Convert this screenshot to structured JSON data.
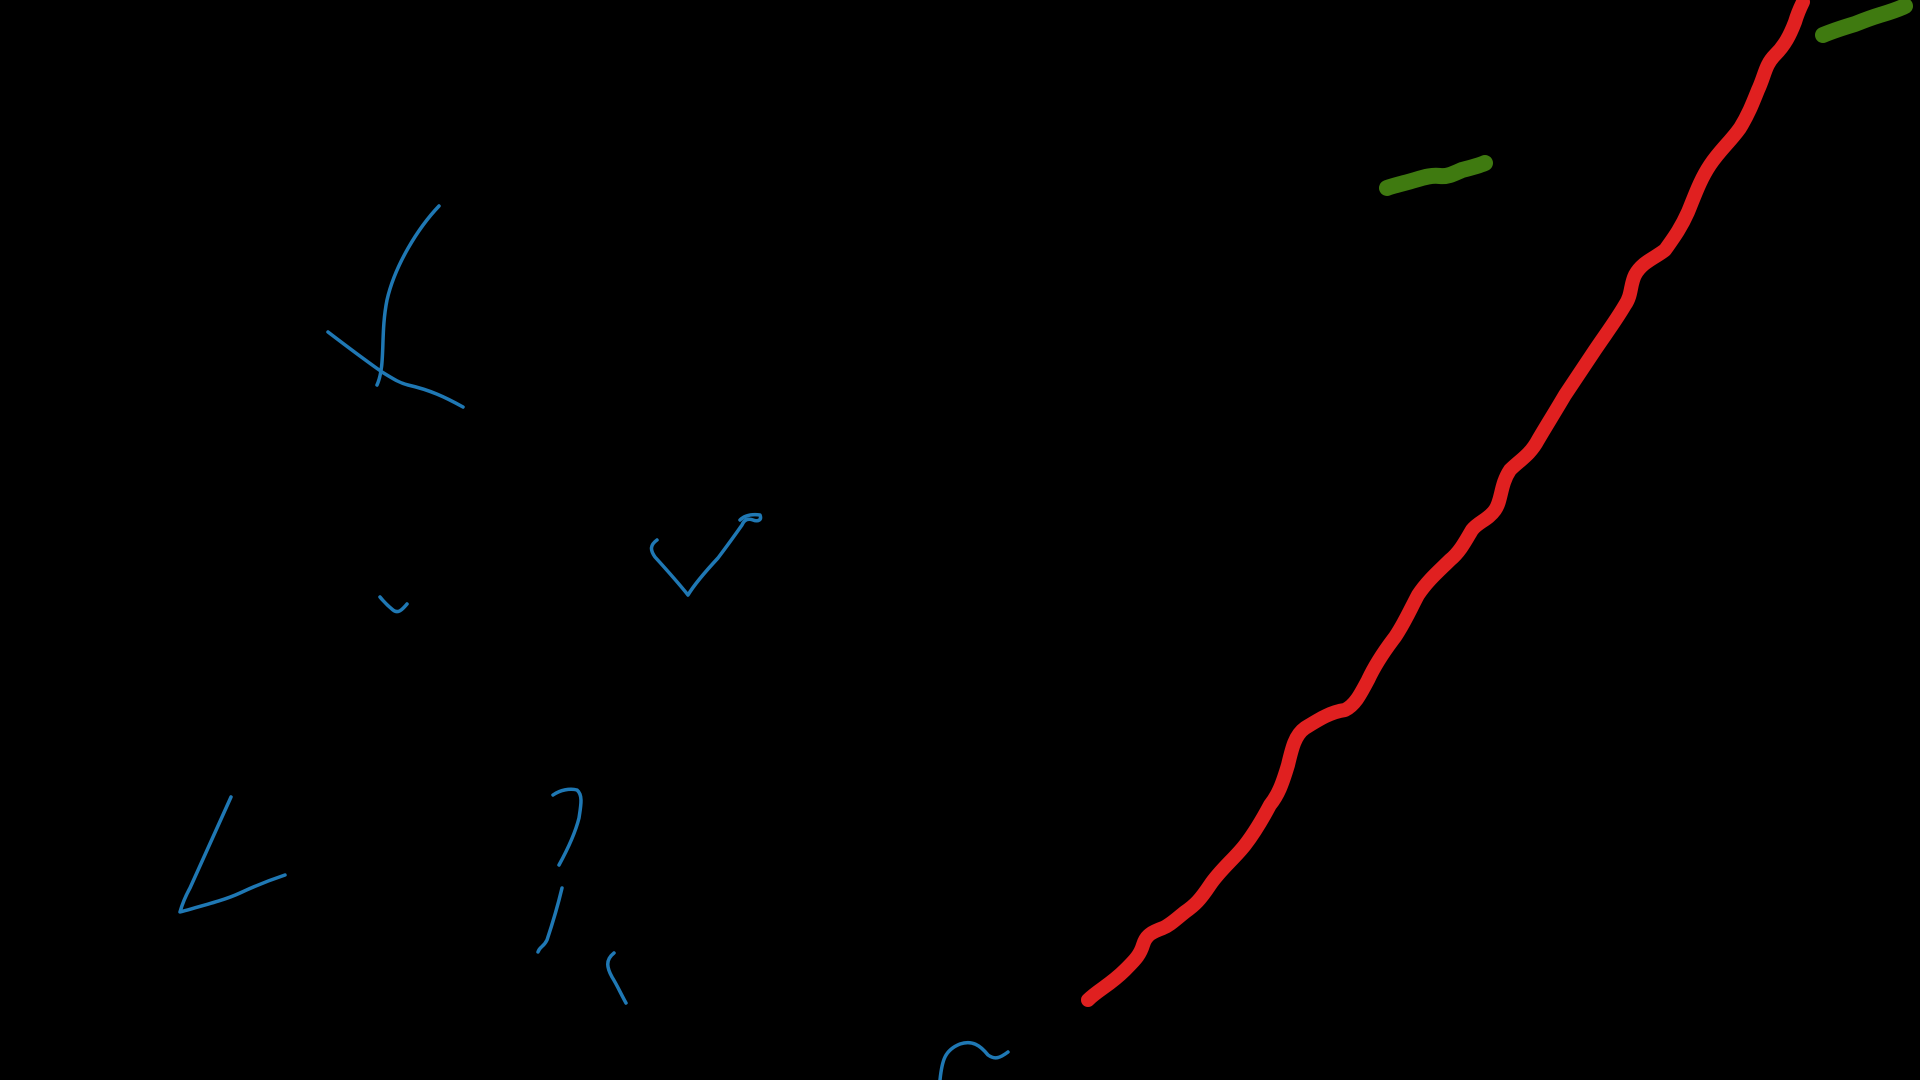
{
  "canvas": {
    "background": "#000000"
  },
  "strokes": {
    "blue": {
      "color": "#1f78b4",
      "count": 9
    },
    "red": {
      "color": "#e02020",
      "count": 1
    },
    "green": {
      "color": "#3f7a10",
      "count": 2
    }
  }
}
